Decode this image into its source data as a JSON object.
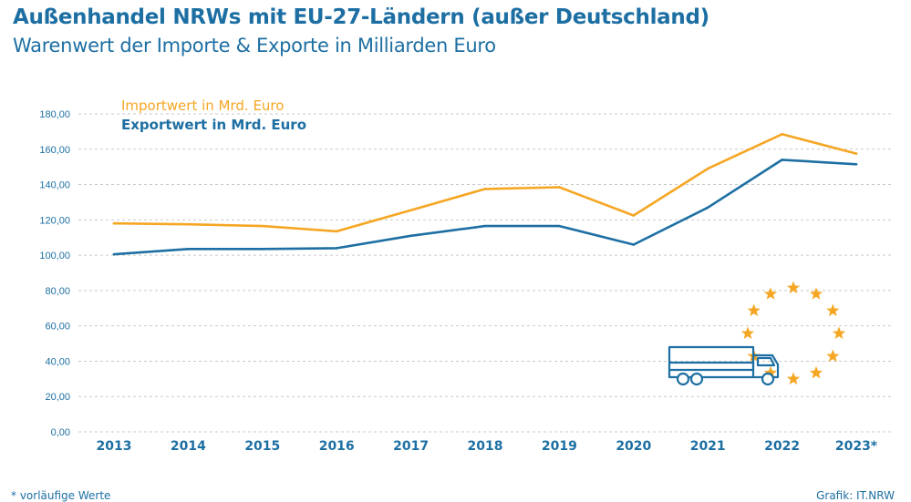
{
  "title": "Außenhandel NRWs mit EU-27-Ländern (außer Deutschland)",
  "subtitle": "Warenwert der Importe & Exporte in Milliarden Euro",
  "footnote": "* vorläufige Werte",
  "source": "Grafik: IT.NRW",
  "colors": {
    "import": "#f5a623",
    "export": "#1d6fa3",
    "grid": "#c9c9c9",
    "text": "#1d6fa3"
  },
  "chart_data": {
    "type": "line",
    "categories": [
      "2013",
      "2014",
      "2015",
      "2016",
      "2017",
      "2018",
      "2019",
      "2020",
      "2021",
      "2022",
      "2023*"
    ],
    "ylim": [
      0,
      180
    ],
    "yticks": [
      "0,00",
      "20,00",
      "40,00",
      "60,00",
      "80,00",
      "100,00",
      "120,00",
      "140,00",
      "160,00",
      "180,00"
    ],
    "ytick_values": [
      0,
      20,
      40,
      60,
      80,
      100,
      120,
      140,
      160,
      180
    ],
    "grid": true,
    "legend": "top-left",
    "series": [
      {
        "name": "Importwert in Mrd. Euro",
        "color": "#f5a623",
        "values": [
          118,
          117.5,
          116.5,
          113.5,
          125.5,
          137.5,
          138.5,
          122.5,
          149,
          168.5,
          157.5
        ]
      },
      {
        "name": "Exportwert in Mrd. Euro",
        "color": "#1d6fa3",
        "values": [
          100.5,
          103.5,
          103.5,
          104,
          111,
          116.5,
          116.5,
          106,
          127,
          154,
          151.5
        ]
      }
    ]
  },
  "illustration": {
    "icons": [
      "truck-icon",
      "eu-stars-icon"
    ],
    "star_count": 12
  }
}
